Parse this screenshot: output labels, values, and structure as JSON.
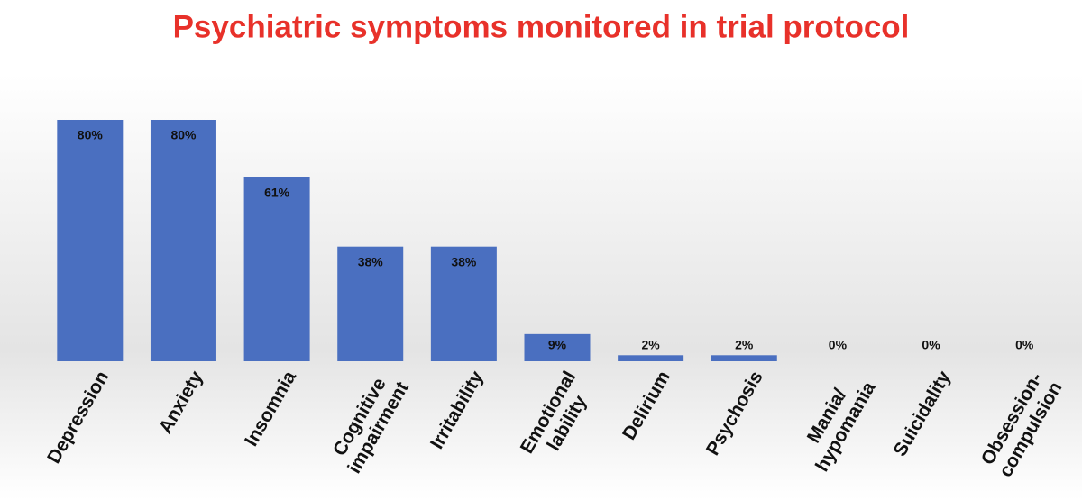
{
  "chart_data": {
    "type": "bar",
    "title": "Psychiatric symptoms monitored in trial protocol",
    "categories": [
      "Depression",
      "Anxiety",
      "Insomnia",
      "Cognitive\nimpairment",
      "Irritability",
      "Emotional\nlability",
      "Delirium",
      "Psychosis",
      "Mania/\nhypomania",
      "Suicidality",
      "Obsession-\ncompulsion"
    ],
    "values": [
      80,
      80,
      61,
      38,
      38,
      9,
      2,
      2,
      0,
      0,
      0
    ],
    "value_labels": [
      "80%",
      "80%",
      "61%",
      "38%",
      "38%",
      "9%",
      "2%",
      "2%",
      "0%",
      "0%",
      "0%"
    ],
    "color": "#4a6fc0"
  }
}
